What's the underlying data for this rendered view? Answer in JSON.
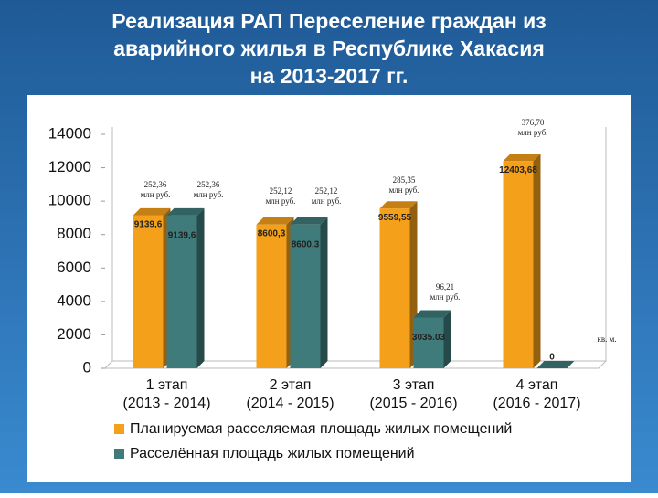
{
  "chart_data": {
    "type": "bar",
    "title": [
      "Реализация РАП Переселение граждан из",
      "аварийного жилья в Республике Хакасия",
      "на 2013-2017 гг."
    ],
    "categories": [
      [
        "1 этап",
        "(2013 - 2014)"
      ],
      [
        "2 этап",
        "(2014 - 2015)"
      ],
      [
        "3 этап",
        "(2015 - 2016)"
      ],
      [
        "4 этап",
        "(2016 - 2017)"
      ]
    ],
    "series": [
      {
        "name": "Планируемая расселяемая площадь жилых помещений",
        "color": "#f5a01a",
        "values": [
          9139.6,
          8600.3,
          9559.55,
          12403.68
        ],
        "value_labels": [
          "9139,6",
          "8600,3",
          "9559,55",
          "12403,68"
        ]
      },
      {
        "name": "Расселённая площадь жилых помещений",
        "color": "#3f7b7b",
        "values": [
          9139.6,
          8600.3,
          3035.03,
          0
        ],
        "value_labels": [
          "9139,6",
          "8600,3",
          "3035.03",
          "0"
        ]
      }
    ],
    "annotations": [
      [
        "252,36",
        "млн руб."
      ],
      [
        "252,36",
        "млн руб."
      ],
      [
        "252,12",
        "млн руб."
      ],
      [
        "252,12",
        "млн руб."
      ],
      [
        "285,35",
        "млн руб."
      ],
      [
        "96,21",
        "млн руб."
      ],
      [
        "376,70",
        "млн руб."
      ]
    ],
    "unit_label": "кв. м.",
    "ylim": [
      0,
      14000
    ],
    "yticks": [
      0,
      2000,
      4000,
      6000,
      8000,
      10000,
      12000,
      14000
    ]
  }
}
